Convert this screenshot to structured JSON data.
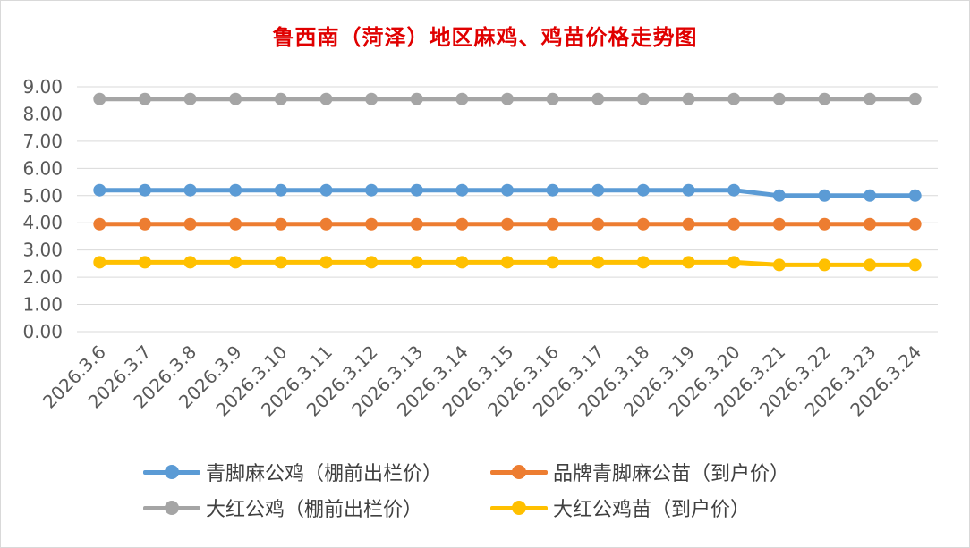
{
  "chart_data": {
    "type": "line",
    "title": "鲁西南（菏泽）地区麻鸡、鸡苗价格走势图",
    "categories": [
      "2026.3.6",
      "2026.3.7",
      "2026.3.8",
      "2026.3.9",
      "2026.3.10",
      "2026.3.11",
      "2026.3.12",
      "2026.3.13",
      "2026.3.14",
      "2026.3.15",
      "2026.3.16",
      "2026.3.17",
      "2026.3.18",
      "2026.3.19",
      "2026.3.20",
      "2026.3.21",
      "2026.3.22",
      "2026.3.23",
      "2026.3.24"
    ],
    "y_ticks": [
      "0.00",
      "1.00",
      "2.00",
      "3.00",
      "4.00",
      "5.00",
      "6.00",
      "7.00",
      "8.00",
      "9.00"
    ],
    "ylim": [
      0,
      9
    ],
    "grid": true,
    "legend_position": "bottom",
    "series": [
      {
        "name": "青脚麻公鸡（棚前出栏价）",
        "color": "#5b9bd5",
        "values": [
          5.2,
          5.2,
          5.2,
          5.2,
          5.2,
          5.2,
          5.2,
          5.2,
          5.2,
          5.2,
          5.2,
          5.2,
          5.2,
          5.2,
          5.2,
          5.0,
          5.0,
          5.0,
          5.0
        ]
      },
      {
        "name": "品牌青脚麻公苗（到户价）",
        "color": "#ed7d31",
        "values": [
          3.95,
          3.95,
          3.95,
          3.95,
          3.95,
          3.95,
          3.95,
          3.95,
          3.95,
          3.95,
          3.95,
          3.95,
          3.95,
          3.95,
          3.95,
          3.95,
          3.95,
          3.95,
          3.95
        ]
      },
      {
        "name": "大红公鸡（棚前出栏价）",
        "color": "#a5a5a5",
        "values": [
          8.55,
          8.55,
          8.55,
          8.55,
          8.55,
          8.55,
          8.55,
          8.55,
          8.55,
          8.55,
          8.55,
          8.55,
          8.55,
          8.55,
          8.55,
          8.55,
          8.55,
          8.55,
          8.55
        ]
      },
      {
        "name": "大红公鸡苗（到户价）",
        "color": "#ffc000",
        "values": [
          2.55,
          2.55,
          2.55,
          2.55,
          2.55,
          2.55,
          2.55,
          2.55,
          2.55,
          2.55,
          2.55,
          2.55,
          2.55,
          2.55,
          2.55,
          2.45,
          2.45,
          2.45,
          2.45
        ]
      }
    ]
  }
}
